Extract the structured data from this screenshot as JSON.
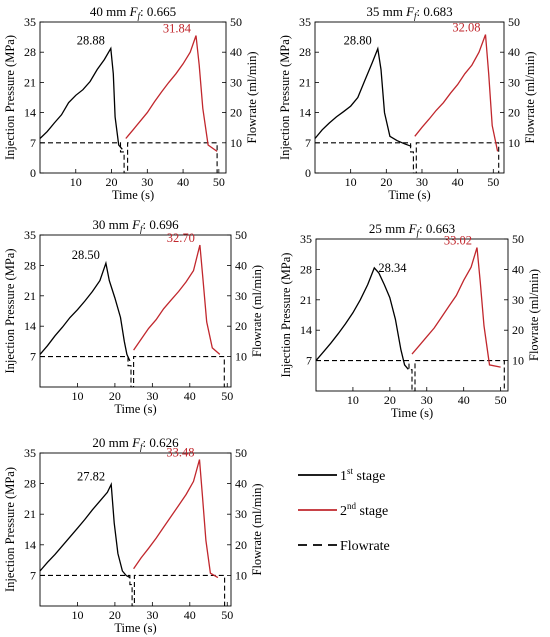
{
  "chart_data": [
    {
      "type": "line",
      "title": "40 mm",
      "param_symbol": "F",
      "param_subscript": "f",
      "param_value": ": 0.665",
      "xlabel": "Time (s)",
      "ylabel_left": "Injection Pressure (MPa)",
      "ylabel_right": "Flowrate (ml/min)",
      "xlim": [
        0,
        52
      ],
      "ylim_left": [
        0,
        35
      ],
      "ylim_right": [
        0,
        50
      ],
      "xticks": [
        10,
        20,
        30,
        40,
        50
      ],
      "yticks_left": [
        0,
        7,
        14,
        21,
        28,
        35
      ],
      "yticks_right": [
        10,
        20,
        30,
        40,
        50
      ],
      "stage1": {
        "x": [
          0,
          2,
          4,
          6,
          8,
          10,
          12,
          14,
          16,
          18,
          19.8,
          20.5,
          21,
          22,
          23
        ],
        "y": [
          8,
          9.6,
          11.6,
          13.5,
          16.3,
          18,
          19.3,
          21.2,
          24,
          26.3,
          28.88,
          23,
          13,
          6.5,
          5.5
        ]
      },
      "stage2": {
        "x": [
          24,
          26,
          28,
          30,
          32,
          34,
          36,
          38,
          40,
          42,
          43.6,
          44.5,
          45.5,
          47,
          49.5
        ],
        "y": [
          8,
          10,
          12,
          14,
          16.5,
          18.8,
          21,
          23,
          25.3,
          28,
          31.84,
          25,
          15,
          6.5,
          5
        ]
      },
      "flowrate": {
        "x": [
          0,
          22.5,
          22.5,
          23.5,
          23.5,
          24.5,
          24.5,
          49.5,
          49.5
        ],
        "y": [
          10,
          10,
          7,
          7,
          0,
          0,
          10,
          10,
          0
        ]
      },
      "peak1_label": "28.88",
      "peak2_label": "31.84"
    },
    {
      "type": "line",
      "title": "35 mm",
      "param_symbol": "F",
      "param_subscript": "f",
      "param_value": ": 0.683",
      "xlabel": "Time (s)",
      "ylabel_left": "Injection Pressure (MPa)",
      "ylabel_right": "Flowrate (ml/min)",
      "xlim": [
        0,
        53
      ],
      "ylim_left": [
        0,
        35
      ],
      "ylim_right": [
        0,
        50
      ],
      "xticks": [
        10,
        20,
        30,
        40,
        50
      ],
      "yticks_left": [
        0,
        7,
        14,
        21,
        28,
        35
      ],
      "yticks_right": [
        10,
        20,
        30,
        40,
        50
      ],
      "stage1": {
        "x": [
          0,
          2,
          4,
          6,
          8,
          10,
          12,
          14,
          16,
          17.6,
          18.5,
          19.5,
          21,
          23,
          25,
          27
        ],
        "y": [
          8,
          10,
          11.6,
          13,
          14.2,
          15.5,
          17.5,
          21.5,
          25.5,
          28.8,
          24,
          14,
          8.5,
          7.5,
          6.8,
          6.2
        ]
      },
      "stage2": {
        "x": [
          28,
          30,
          32,
          34,
          36,
          38,
          40,
          42,
          44,
          46,
          47.8,
          48.7,
          49.7,
          51.2
        ],
        "y": [
          8.5,
          10.6,
          12.5,
          14.5,
          16.3,
          18.5,
          20.5,
          23,
          25,
          28,
          32.08,
          23,
          11,
          5
        ]
      },
      "flowrate": {
        "x": [
          0,
          26.8,
          26.8,
          27.6,
          27.6,
          28.4,
          28.4,
          51.5,
          51.5
        ],
        "y": [
          10,
          10,
          7,
          7,
          0,
          0,
          10,
          10,
          0
        ]
      },
      "peak1_label": "28.80",
      "peak2_label": "32.08"
    },
    {
      "type": "line",
      "title": "30 mm",
      "param_symbol": "F",
      "param_subscript": "f",
      "param_value": ": 0.696",
      "xlabel": "Time (s)",
      "ylabel_left": "Injection Pressure (MPa)",
      "ylabel_right": "Flowrate (ml/min)",
      "xlim": [
        0,
        51
      ],
      "ylim_left": [
        0,
        35
      ],
      "ylim_right": [
        0,
        50
      ],
      "xticks": [
        10,
        20,
        30,
        40,
        50
      ],
      "yticks_left": [
        7,
        14,
        21,
        28,
        35
      ],
      "yticks_right": [
        10,
        20,
        30,
        40,
        50
      ],
      "stage1": {
        "x": [
          0,
          2,
          4,
          6,
          8,
          10,
          12,
          14,
          16,
          17.6,
          18.5,
          20,
          21.5,
          22.5,
          23.2,
          24
        ],
        "y": [
          7.5,
          9.5,
          11.8,
          13.8,
          16,
          17.8,
          19.8,
          22,
          24.5,
          28.5,
          24.5,
          20.5,
          16,
          10.5,
          7.5,
          6
        ]
      },
      "stage2": {
        "x": [
          25,
          27,
          29,
          31,
          33,
          35,
          37,
          39,
          41,
          42.7,
          43.5,
          44.5,
          46,
          48
        ],
        "y": [
          8.5,
          11,
          13.5,
          15.5,
          18,
          20,
          22,
          24.2,
          26.8,
          32.7,
          25,
          15,
          9,
          7.5
        ]
      },
      "flowrate": {
        "x": [
          0,
          23.5,
          23.5,
          24.3,
          24.3,
          25,
          25,
          49.2,
          49.2
        ],
        "y": [
          10,
          10,
          7,
          7,
          0,
          0,
          10,
          10,
          0
        ]
      },
      "peak1_label": "28.50",
      "peak2_label": "32.70"
    },
    {
      "type": "line",
      "title": "25 mm",
      "param_symbol": "F",
      "param_subscript": "f",
      "param_value": ": 0.663",
      "xlabel": "Time (s)",
      "ylabel_left": "Injection Pressure (MPa)",
      "ylabel_right": "Flowrate (ml/min)",
      "xlim": [
        0,
        52
      ],
      "ylim_left": [
        0,
        35
      ],
      "ylim_right": [
        0,
        50
      ],
      "xticks": [
        10,
        20,
        30,
        40,
        50
      ],
      "yticks_left": [
        7,
        14,
        21,
        28,
        35
      ],
      "yticks_right": [
        10,
        20,
        30,
        40,
        50
      ],
      "stage1": {
        "x": [
          0,
          2,
          4,
          6,
          8,
          10,
          12,
          14,
          15.8,
          17,
          18.5,
          20,
          21.5,
          23,
          24,
          25
        ],
        "y": [
          7,
          9,
          11,
          13.2,
          15.5,
          18,
          21,
          24.5,
          28.34,
          27.2,
          24.5,
          21.5,
          16.5,
          9.5,
          6,
          5
        ]
      },
      "stage2": {
        "x": [
          26,
          28,
          30,
          32,
          34,
          36,
          38,
          40,
          42,
          43.6,
          44.5,
          45.5,
          47,
          50
        ],
        "y": [
          8.5,
          10.5,
          12.5,
          14.5,
          17,
          19.5,
          22,
          25.5,
          28.5,
          33.02,
          25,
          15,
          6,
          5.5
        ]
      },
      "flowrate": {
        "x": [
          0,
          25.2,
          25.2,
          26,
          26,
          26.8,
          26.8,
          51,
          51
        ],
        "y": [
          10,
          10,
          7,
          7,
          0,
          0,
          10,
          10,
          0
        ]
      },
      "peak1_label": "28.34",
      "peak2_label": "33.02"
    },
    {
      "type": "line",
      "title": "20 mm",
      "param_symbol": "F",
      "param_subscript": "f",
      "param_value": ": 0.626",
      "xlabel": "Time (s)",
      "ylabel_left": "Injection Pressure (MPa)",
      "ylabel_right": "Flowrate (ml/min)",
      "xlim": [
        0,
        51
      ],
      "ylim_left": [
        0,
        35
      ],
      "ylim_right": [
        0,
        50
      ],
      "xticks": [
        10,
        20,
        30,
        40,
        50
      ],
      "yticks_left": [
        7,
        14,
        21,
        28,
        35
      ],
      "yticks_right": [
        10,
        20,
        30,
        40,
        50
      ],
      "stage1": {
        "x": [
          0,
          2,
          4,
          6,
          8,
          10,
          12,
          14,
          16,
          18,
          19,
          19.8,
          20.8,
          22,
          23,
          24
        ],
        "y": [
          8,
          10,
          11.8,
          13.8,
          15.8,
          17.8,
          19.8,
          22,
          24,
          26,
          27.82,
          19,
          12,
          8,
          7,
          6.5
        ]
      },
      "stage2": {
        "x": [
          25,
          27,
          29,
          31,
          33,
          35,
          37,
          39,
          41,
          42.6,
          43.4,
          44.3,
          45.5,
          47.5
        ],
        "y": [
          8.5,
          11,
          13.2,
          15.5,
          18,
          20.5,
          23,
          25.5,
          28.5,
          33.48,
          25,
          15,
          7.5,
          6.5
        ]
      },
      "flowrate": {
        "x": [
          0,
          24,
          24,
          24.6,
          24.6,
          25.2,
          25.2,
          49.3,
          49.3
        ],
        "y": [
          10,
          10,
          7,
          7,
          0,
          0,
          10,
          10,
          0
        ]
      },
      "peak1_label": "27.82",
      "peak2_label": "33.48"
    }
  ],
  "legend": [
    {
      "label_pre": "1",
      "label_sup": "st",
      "label_post": " stage",
      "color": "#000000",
      "style": "solid"
    },
    {
      "label_pre": "2",
      "label_sup": "nd",
      "label_post": " stage",
      "color": "#c1272d",
      "style": "solid"
    },
    {
      "label_pre": "Flowrate",
      "label_sup": "",
      "label_post": "",
      "color": "#000000",
      "style": "dashed"
    }
  ],
  "colors": {
    "stage1": "#000000",
    "stage2": "#c1272d",
    "flowrate": "#000000",
    "axis": "#000000"
  }
}
